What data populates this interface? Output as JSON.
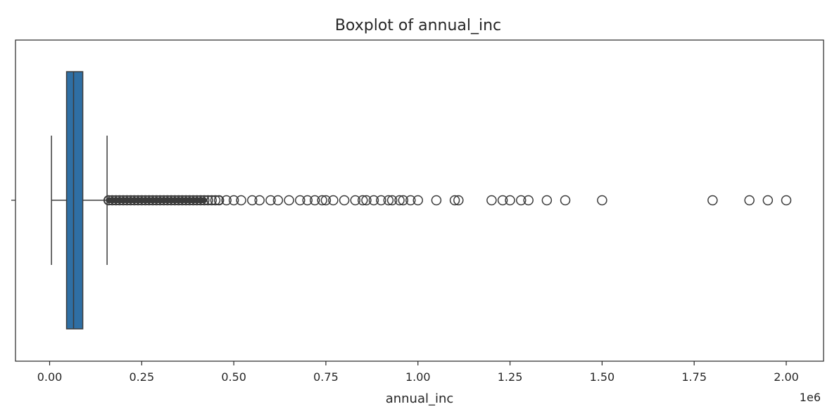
{
  "chart_data": {
    "type": "boxplot",
    "title": "Boxplot of annual_inc",
    "xlabel": "annual_inc",
    "ylabel": "",
    "x_offset_label": "1e6",
    "xlim": [
      -0.09,
      2.1
    ],
    "x_ticks": [
      0.0,
      0.25,
      0.5,
      0.75,
      1.0,
      1.25,
      1.5,
      1.75,
      2.0
    ],
    "x_tick_labels": [
      "0.00",
      "0.25",
      "0.50",
      "0.75",
      "1.00",
      "1.25",
      "1.50",
      "1.75",
      "2.00"
    ],
    "grid": false,
    "box": {
      "whisker_low": 0.005,
      "q1": 0.046,
      "median": 0.065,
      "q3": 0.09,
      "whisker_high": 0.156,
      "fill_color": "#2f6fa4",
      "line_color": "#3b3b3b"
    },
    "outliers": [
      0.16,
      0.17,
      0.18,
      0.19,
      0.2,
      0.21,
      0.22,
      0.23,
      0.24,
      0.25,
      0.26,
      0.27,
      0.28,
      0.29,
      0.3,
      0.31,
      0.32,
      0.33,
      0.34,
      0.35,
      0.36,
      0.37,
      0.38,
      0.39,
      0.4,
      0.41,
      0.42,
      0.43,
      0.44,
      0.45,
      0.46,
      0.48,
      0.5,
      0.52,
      0.55,
      0.57,
      0.6,
      0.62,
      0.65,
      0.68,
      0.7,
      0.72,
      0.74,
      0.75,
      0.77,
      0.8,
      0.83,
      0.85,
      0.86,
      0.88,
      0.9,
      0.92,
      0.93,
      0.95,
      0.96,
      0.98,
      1.0,
      1.05,
      1.1,
      1.11,
      1.2,
      1.23,
      1.25,
      1.28,
      1.3,
      1.35,
      1.4,
      1.5,
      1.8,
      1.9,
      1.95,
      2.0
    ]
  }
}
